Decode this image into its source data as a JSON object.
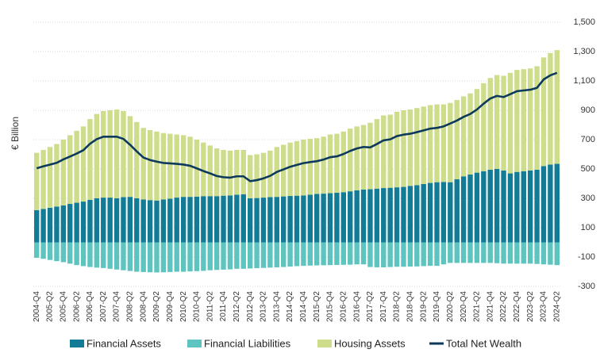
{
  "chart_data": {
    "type": "bar",
    "stacked": true,
    "y_label": "€ Billion",
    "y_axis_side": "right",
    "grid": true,
    "legend": "bottom",
    "categories": [
      "2004-Q4",
      null,
      "2005-Q2",
      null,
      "2005-Q4",
      null,
      "2006-Q2",
      null,
      "2006-Q4",
      null,
      "2007-Q2",
      null,
      "2007-Q4",
      null,
      "2008-Q2",
      null,
      "2008-Q4",
      null,
      "2009-Q2",
      null,
      "2009-Q4",
      null,
      "2010-Q2",
      null,
      "2010-Q4",
      null,
      "2011-Q2",
      null,
      "2011-Q4",
      null,
      "2012-Q2",
      null,
      "2012-Q4",
      null,
      "2013-Q2",
      null,
      "2013-Q4",
      null,
      "2014-Q2",
      null,
      "2014-Q4",
      null,
      "2015-Q2",
      null,
      "2015-Q4",
      null,
      "2016-Q2",
      null,
      "2016-Q4",
      null,
      "2017-Q2",
      null,
      "2017-Q4",
      null,
      "2018-Q2",
      null,
      "2018-Q4",
      null,
      "2019-Q2",
      null,
      "2019-Q4",
      null,
      "2020-Q2",
      null,
      "2020-Q4",
      null,
      "2021-Q2",
      null,
      "2021-Q4",
      null,
      "2022-Q2",
      null,
      "2022-Q4",
      null,
      "2023-Q2",
      null,
      "2023-Q4",
      null,
      "2024-Q2"
    ],
    "series": [
      {
        "name": "Financial Assets",
        "type": "bar",
        "color": "#127b96",
        "values": [
          220,
          228,
          236,
          244,
          252,
          262,
          270,
          278,
          290,
          300,
          305,
          305,
          300,
          308,
          310,
          300,
          292,
          288,
          285,
          292,
          298,
          305,
          310,
          310,
          312,
          315,
          315,
          315,
          318,
          320,
          325,
          328,
          300,
          302,
          305,
          308,
          310,
          313,
          316,
          318,
          320,
          325,
          330,
          332,
          335,
          338,
          342,
          348,
          355,
          360,
          362,
          366,
          370,
          372,
          375,
          378,
          385,
          390,
          398,
          405,
          410,
          412,
          410,
          430,
          450,
          462,
          475,
          485,
          495,
          500,
          490,
          470,
          480,
          485,
          490,
          495,
          520,
          530,
          535
        ]
      },
      {
        "name": "Financial Liabilities",
        "type": "bar",
        "color": "#5ec4c0",
        "values": [
          -105,
          -112,
          -120,
          -128,
          -135,
          -145,
          -155,
          -162,
          -168,
          -172,
          -175,
          -180,
          -185,
          -190,
          -195,
          -200,
          -202,
          -204,
          -205,
          -204,
          -202,
          -200,
          -200,
          -198,
          -196,
          -194,
          -190,
          -188,
          -186,
          -184,
          -180,
          -180,
          -178,
          -176,
          -174,
          -172,
          -170,
          -168,
          -165,
          -162,
          -160,
          -158,
          -157,
          -156,
          -155,
          -154,
          -153,
          -152,
          -150,
          -150,
          -168,
          -170,
          -170,
          -168,
          -166,
          -166,
          -165,
          -164,
          -162,
          -160,
          -160,
          -150,
          -140,
          -140,
          -140,
          -140,
          -140,
          -140,
          -140,
          -142,
          -145,
          -145,
          -145,
          -145,
          -145,
          -147,
          -150,
          -152,
          -155
        ]
      },
      {
        "name": "Housing Assets",
        "type": "bar",
        "color": "#cddd8b",
        "values": [
          390,
          402,
          414,
          426,
          448,
          468,
          490,
          512,
          550,
          575,
          590,
          595,
          605,
          587,
          550,
          520,
          488,
          477,
          470,
          453,
          442,
          430,
          420,
          410,
          388,
          365,
          345,
          325,
          312,
          305,
          305,
          302,
          295,
          298,
          305,
          317,
          340,
          352,
          364,
          372,
          380,
          380,
          380,
          388,
          400,
          402,
          413,
          427,
          435,
          440,
          453,
          474,
          495,
          498,
          515,
          522,
          520,
          525,
          527,
          530,
          530,
          528,
          540,
          540,
          545,
          553,
          570,
          600,
          625,
          640,
          645,
          685,
          695,
          695,
          695,
          705,
          740,
          760,
          775
        ]
      },
      {
        "name": "Total Net Wealth",
        "type": "line",
        "color": "#0d3a5c",
        "values": [
          505,
          518,
          530,
          542,
          565,
          585,
          605,
          628,
          672,
          703,
          720,
          720,
          720,
          705,
          665,
          620,
          578,
          561,
          550,
          541,
          538,
          535,
          530,
          522,
          504,
          486,
          470,
          452,
          444,
          441,
          450,
          450,
          417,
          424,
          436,
          453,
          480,
          497,
          515,
          528,
          540,
          547,
          553,
          564,
          580,
          586,
          602,
          623,
          640,
          650,
          647,
          670,
          695,
          702,
          724,
          734,
          740,
          751,
          763,
          775,
          780,
          790,
          810,
          830,
          855,
          875,
          905,
          945,
          980,
          998,
          990,
          1010,
          1030,
          1035,
          1040,
          1053,
          1110,
          1138,
          1155
        ]
      }
    ],
    "ylim": [
      -300,
      1500
    ],
    "yticks": [
      -300,
      -100,
      100,
      300,
      500,
      700,
      900,
      {
        "value": 1100,
        "label": "1,100"
      },
      {
        "value": 1300,
        "label": "1,300"
      },
      {
        "value": 1500,
        "label": "1,500"
      }
    ]
  }
}
